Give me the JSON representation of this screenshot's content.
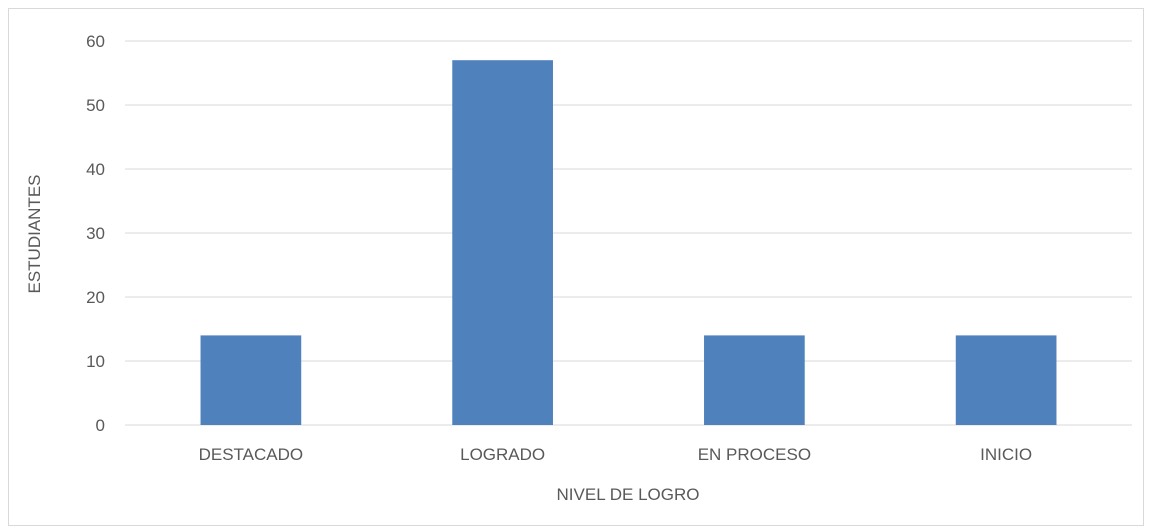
{
  "chart_data": {
    "type": "bar",
    "title": "",
    "categories": [
      "DESTACADO",
      "LOGRADO",
      "EN PROCESO",
      "INICIO"
    ],
    "values": [
      14,
      57,
      14,
      14
    ],
    "xlabel": "NIVEL DE LOGRO",
    "ylabel": "ESTUDIANTES",
    "ylim": [
      0,
      60
    ],
    "yticks": [
      0,
      10,
      20,
      30,
      40,
      50,
      60
    ],
    "grid": true,
    "legend": "none",
    "bar_color": "#4f81bd",
    "grid_color": "#d9d9d9"
  }
}
